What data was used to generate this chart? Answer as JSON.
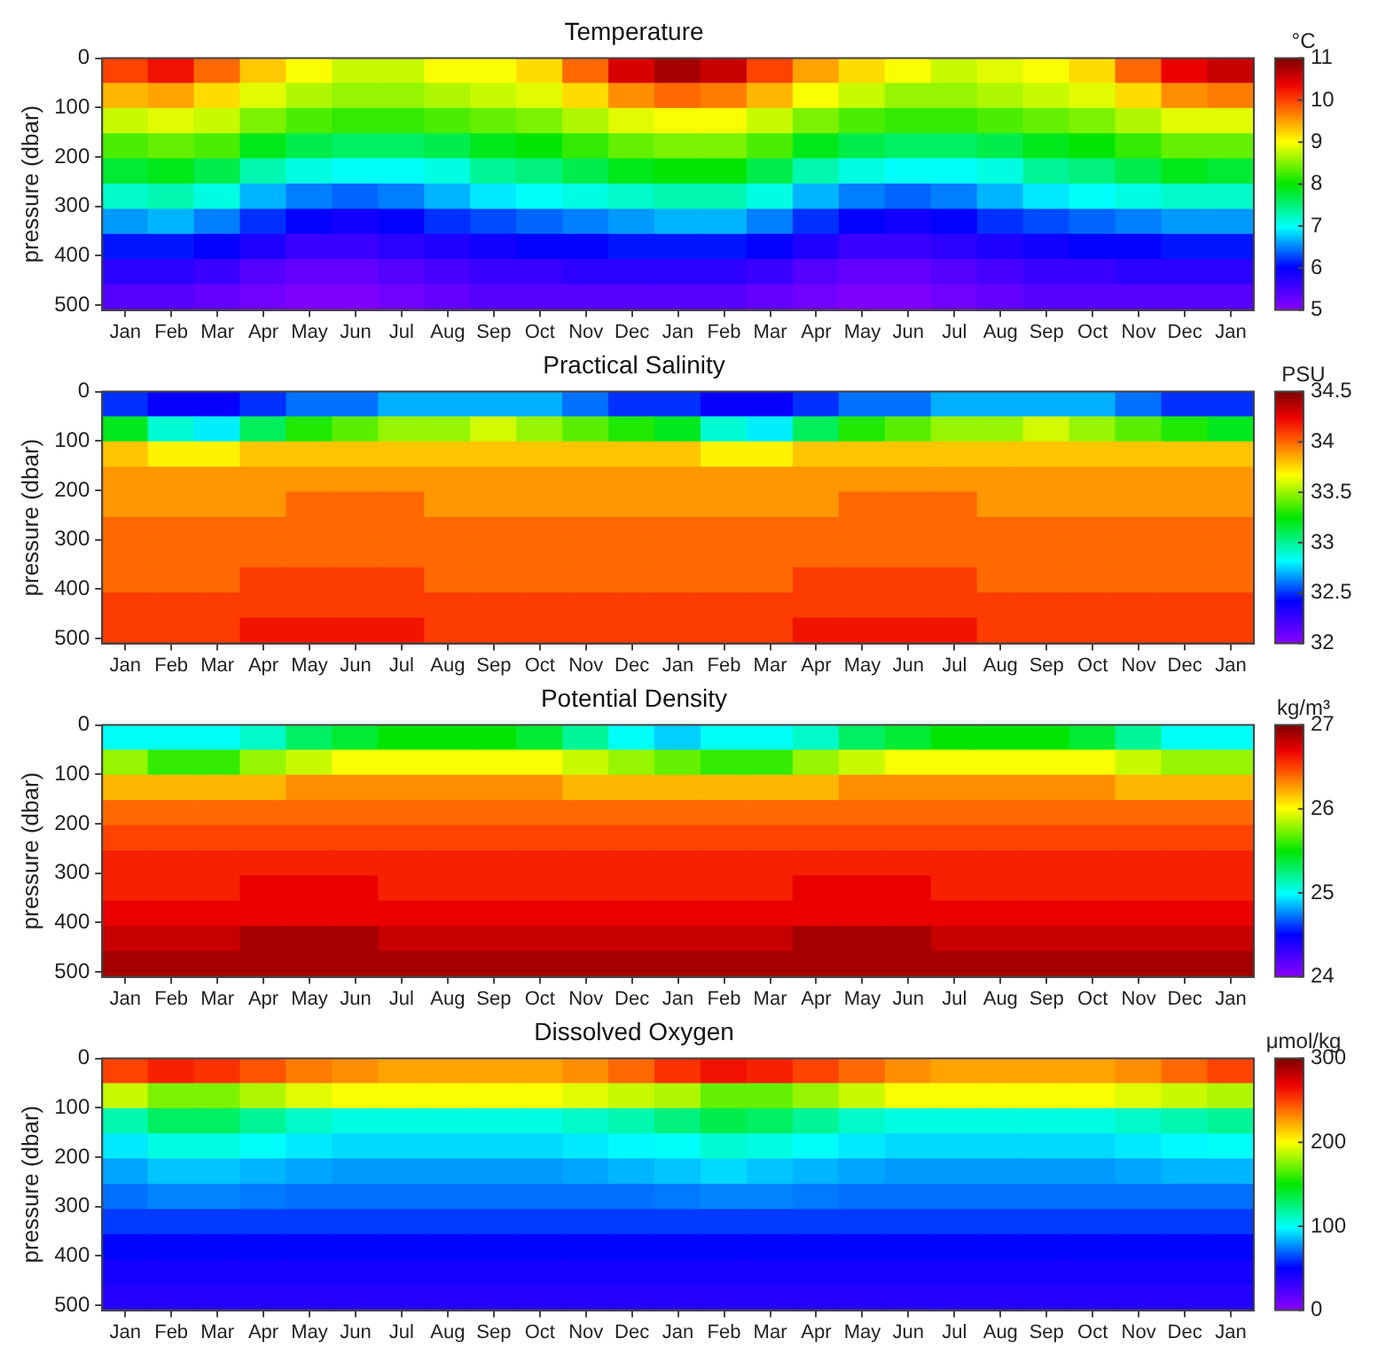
{
  "chart_data": [
    {
      "type": "heatmap",
      "title": "Temperature",
      "ylabel": "pressure (dbar)",
      "clabel": "°C",
      "categories": [
        "Jan",
        "Feb",
        "Mar",
        "Apr",
        "May",
        "Jun",
        "Jul",
        "Aug",
        "Sep",
        "Oct",
        "Nov",
        "Dec",
        "Jan",
        "Feb",
        "Mar",
        "Apr",
        "May",
        "Jun",
        "Jul",
        "Aug",
        "Sep",
        "Oct",
        "Nov",
        "Dec",
        "Jan"
      ],
      "ylim": [
        510,
        0
      ],
      "yticks": [
        0,
        100,
        200,
        300,
        400,
        500
      ],
      "clim": [
        5,
        11
      ],
      "cticks": [
        5,
        6,
        7,
        8,
        9,
        10,
        11
      ],
      "cells": [
        [
          10,
          10.3,
          9.8,
          9.3,
          9,
          8.8,
          8.8,
          9,
          9,
          9.2,
          9.8,
          10.5,
          10.8,
          10.6,
          10,
          9.5,
          9.2,
          9,
          8.8,
          8.9,
          9,
          9.2,
          9.8,
          10.4,
          10.6
        ],
        [
          9.4,
          9.5,
          9.2,
          8.9,
          8.7,
          8.6,
          8.6,
          8.7,
          8.8,
          8.9,
          9.2,
          9.6,
          9.8,
          9.7,
          9.4,
          9,
          8.8,
          8.6,
          8.6,
          8.7,
          8.8,
          8.9,
          9.2,
          9.6,
          9.7
        ],
        [
          8.8,
          8.9,
          8.8,
          8.5,
          8.3,
          8.2,
          8.2,
          8.3,
          8.4,
          8.5,
          8.7,
          8.9,
          9,
          9,
          8.8,
          8.5,
          8.3,
          8.2,
          8.2,
          8.3,
          8.4,
          8.5,
          8.7,
          8.9,
          8.9
        ],
        [
          8.3,
          8.4,
          8.3,
          7.9,
          7.7,
          7.6,
          7.6,
          7.7,
          7.9,
          8,
          8.2,
          8.4,
          8.5,
          8.5,
          8.3,
          7.9,
          7.7,
          7.6,
          7.6,
          7.7,
          7.9,
          8,
          8.2,
          8.4,
          8.4
        ],
        [
          7.8,
          7.9,
          7.7,
          7.3,
          7.1,
          7,
          7,
          7.1,
          7.4,
          7.5,
          7.7,
          7.9,
          8,
          8,
          7.7,
          7.3,
          7.1,
          7,
          7,
          7.1,
          7.4,
          7.5,
          7.7,
          7.9,
          7.8
        ],
        [
          7.2,
          7.3,
          7.1,
          6.7,
          6.5,
          6.4,
          6.5,
          6.7,
          6.9,
          7,
          7.1,
          7.2,
          7.3,
          7.3,
          7.1,
          6.7,
          6.5,
          6.4,
          6.5,
          6.7,
          6.9,
          7,
          7.1,
          7.2,
          7.2
        ],
        [
          6.6,
          6.7,
          6.5,
          6.2,
          6,
          5.9,
          6,
          6.2,
          6.3,
          6.4,
          6.5,
          6.6,
          6.7,
          6.7,
          6.5,
          6.2,
          6,
          5.9,
          6,
          6.2,
          6.3,
          6.4,
          6.5,
          6.6,
          6.6
        ],
        [
          6.1,
          6.1,
          6,
          5.8,
          5.6,
          5.6,
          5.7,
          5.8,
          5.9,
          6,
          6,
          6.1,
          6.1,
          6.1,
          6,
          5.8,
          5.6,
          5.6,
          5.7,
          5.8,
          5.9,
          6,
          6,
          6.1,
          6.1
        ],
        [
          5.7,
          5.7,
          5.6,
          5.4,
          5.3,
          5.3,
          5.4,
          5.5,
          5.6,
          5.6,
          5.7,
          5.7,
          5.7,
          5.7,
          5.6,
          5.4,
          5.3,
          5.3,
          5.4,
          5.5,
          5.6,
          5.6,
          5.7,
          5.7,
          5.7
        ],
        [
          5.4,
          5.4,
          5.3,
          5.2,
          5.1,
          5.1,
          5.2,
          5.3,
          5.4,
          5.4,
          5.4,
          5.4,
          5.4,
          5.4,
          5.3,
          5.2,
          5.1,
          5.1,
          5.2,
          5.3,
          5.4,
          5.4,
          5.4,
          5.4,
          5.4
        ]
      ]
    },
    {
      "type": "heatmap",
      "title": "Practical Salinity",
      "ylabel": "pressure (dbar)",
      "clabel": "PSU",
      "categories": [
        "Jan",
        "Feb",
        "Mar",
        "Apr",
        "May",
        "Jun",
        "Jul",
        "Aug",
        "Sep",
        "Oct",
        "Nov",
        "Dec",
        "Jan",
        "Feb",
        "Mar",
        "Apr",
        "May",
        "Jun",
        "Jul",
        "Aug",
        "Sep",
        "Oct",
        "Nov",
        "Dec",
        "Jan"
      ],
      "ylim": [
        510,
        0
      ],
      "yticks": [
        0,
        100,
        200,
        300,
        400,
        500
      ],
      "clim": [
        32,
        34.5
      ],
      "cticks": [
        32,
        32.5,
        33,
        33.5,
        34,
        34.5
      ],
      "cells": [
        [
          32.5,
          32.4,
          32.4,
          32.5,
          32.6,
          32.6,
          32.7,
          32.7,
          32.7,
          32.7,
          32.6,
          32.5,
          32.5,
          32.4,
          32.4,
          32.5,
          32.6,
          32.6,
          32.7,
          32.7,
          32.7,
          32.7,
          32.6,
          32.5,
          32.5
        ],
        [
          33.2,
          32.9,
          32.8,
          33.1,
          33.3,
          33.4,
          33.5,
          33.5,
          33.6,
          33.5,
          33.4,
          33.3,
          33.2,
          32.9,
          32.8,
          33.1,
          33.3,
          33.4,
          33.5,
          33.5,
          33.6,
          33.5,
          33.4,
          33.3,
          33.2
        ],
        [
          33.8,
          33.7,
          33.7,
          33.8,
          33.8,
          33.8,
          33.8,
          33.8,
          33.8,
          33.8,
          33.8,
          33.8,
          33.8,
          33.7,
          33.7,
          33.8,
          33.8,
          33.8,
          33.8,
          33.8,
          33.8,
          33.8,
          33.8,
          33.8,
          33.8
        ],
        [
          33.9,
          33.9,
          33.9,
          33.9,
          33.9,
          33.9,
          33.9,
          33.9,
          33.9,
          33.9,
          33.9,
          33.9,
          33.9,
          33.9,
          33.9,
          33.9,
          33.9,
          33.9,
          33.9,
          33.9,
          33.9,
          33.9,
          33.9,
          33.9,
          33.9
        ],
        [
          33.9,
          33.9,
          33.9,
          33.9,
          34,
          34,
          34,
          33.9,
          33.9,
          33.9,
          33.9,
          33.9,
          33.9,
          33.9,
          33.9,
          33.9,
          34,
          34,
          34,
          33.9,
          33.9,
          33.9,
          33.9,
          33.9,
          33.9
        ],
        [
          34,
          34,
          34,
          34,
          34,
          34,
          34,
          34,
          34,
          34,
          34,
          34,
          34,
          34,
          34,
          34,
          34,
          34,
          34,
          34,
          34,
          34,
          34,
          34,
          34
        ],
        [
          34,
          34,
          34,
          34,
          34,
          34,
          34,
          34,
          34,
          34,
          34,
          34,
          34,
          34,
          34,
          34,
          34,
          34,
          34,
          34,
          34,
          34,
          34,
          34,
          34
        ],
        [
          34,
          34,
          34,
          34.1,
          34.1,
          34.1,
          34.1,
          34,
          34,
          34,
          34,
          34,
          34,
          34,
          34,
          34.1,
          34.1,
          34.1,
          34.1,
          34,
          34,
          34,
          34,
          34,
          34
        ],
        [
          34.1,
          34.1,
          34.1,
          34.1,
          34.1,
          34.1,
          34.1,
          34.1,
          34.1,
          34.1,
          34.1,
          34.1,
          34.1,
          34.1,
          34.1,
          34.1,
          34.1,
          34.1,
          34.1,
          34.1,
          34.1,
          34.1,
          34.1,
          34.1,
          34.1
        ],
        [
          34.1,
          34.1,
          34.1,
          34.2,
          34.2,
          34.2,
          34.2,
          34.1,
          34.1,
          34.1,
          34.1,
          34.1,
          34.1,
          34.1,
          34.1,
          34.2,
          34.2,
          34.2,
          34.2,
          34.1,
          34.1,
          34.1,
          34.1,
          34.1,
          34.1
        ]
      ]
    },
    {
      "type": "heatmap",
      "title": "Potential Density",
      "ylabel": "pressure (dbar)",
      "clabel": "kg/m³",
      "categories": [
        "Jan",
        "Feb",
        "Mar",
        "Apr",
        "May",
        "Jun",
        "Jul",
        "Aug",
        "Sep",
        "Oct",
        "Nov",
        "Dec",
        "Jan",
        "Feb",
        "Mar",
        "Apr",
        "May",
        "Jun",
        "Jul",
        "Aug",
        "Sep",
        "Oct",
        "Nov",
        "Dec",
        "Jan"
      ],
      "ylim": [
        510,
        0
      ],
      "yticks": [
        0,
        100,
        200,
        300,
        400,
        500
      ],
      "clim": [
        24,
        27
      ],
      "cticks": [
        24,
        25,
        26,
        27
      ],
      "cells": [
        [
          25,
          25,
          25,
          25.1,
          25.3,
          25.4,
          25.5,
          25.5,
          25.5,
          25.4,
          25.2,
          25,
          24.9,
          25,
          25,
          25.1,
          25.3,
          25.4,
          25.5,
          25.5,
          25.5,
          25.4,
          25.2,
          25,
          25
        ],
        [
          25.8,
          25.6,
          25.6,
          25.8,
          25.9,
          26,
          26,
          26,
          26,
          26,
          25.9,
          25.8,
          25.7,
          25.6,
          25.6,
          25.8,
          25.9,
          26,
          26,
          26,
          26,
          26,
          25.9,
          25.8,
          25.8
        ],
        [
          26.2,
          26.2,
          26.2,
          26.2,
          26.3,
          26.3,
          26.3,
          26.3,
          26.3,
          26.3,
          26.2,
          26.2,
          26.2,
          26.2,
          26.2,
          26.2,
          26.3,
          26.3,
          26.3,
          26.3,
          26.3,
          26.3,
          26.2,
          26.2,
          26.2
        ],
        [
          26.4,
          26.4,
          26.4,
          26.4,
          26.4,
          26.4,
          26.4,
          26.4,
          26.4,
          26.4,
          26.4,
          26.4,
          26.4,
          26.4,
          26.4,
          26.4,
          26.4,
          26.4,
          26.4,
          26.4,
          26.4,
          26.4,
          26.4,
          26.4,
          26.4
        ],
        [
          26.5,
          26.5,
          26.5,
          26.5,
          26.5,
          26.5,
          26.5,
          26.5,
          26.5,
          26.5,
          26.5,
          26.5,
          26.5,
          26.5,
          26.5,
          26.5,
          26.5,
          26.5,
          26.5,
          26.5,
          26.5,
          26.5,
          26.5,
          26.5,
          26.5
        ],
        [
          26.6,
          26.6,
          26.6,
          26.6,
          26.6,
          26.6,
          26.6,
          26.6,
          26.6,
          26.6,
          26.6,
          26.6,
          26.6,
          26.6,
          26.6,
          26.6,
          26.6,
          26.6,
          26.6,
          26.6,
          26.6,
          26.6,
          26.6,
          26.6,
          26.6
        ],
        [
          26.6,
          26.6,
          26.6,
          26.7,
          26.7,
          26.7,
          26.6,
          26.6,
          26.6,
          26.6,
          26.6,
          26.6,
          26.6,
          26.6,
          26.6,
          26.7,
          26.7,
          26.7,
          26.6,
          26.6,
          26.6,
          26.6,
          26.6,
          26.6,
          26.6
        ],
        [
          26.7,
          26.7,
          26.7,
          26.7,
          26.7,
          26.7,
          26.7,
          26.7,
          26.7,
          26.7,
          26.7,
          26.7,
          26.7,
          26.7,
          26.7,
          26.7,
          26.7,
          26.7,
          26.7,
          26.7,
          26.7,
          26.7,
          26.7,
          26.7,
          26.7
        ],
        [
          26.8,
          26.8,
          26.8,
          26.9,
          26.9,
          26.9,
          26.8,
          26.8,
          26.8,
          26.8,
          26.8,
          26.8,
          26.8,
          26.8,
          26.8,
          26.9,
          26.9,
          26.9,
          26.8,
          26.8,
          26.8,
          26.8,
          26.8,
          26.8,
          26.8
        ],
        [
          26.9,
          26.9,
          26.9,
          26.9,
          26.9,
          26.9,
          26.9,
          26.9,
          26.9,
          26.9,
          26.9,
          26.9,
          26.9,
          26.9,
          26.9,
          26.9,
          26.9,
          26.9,
          26.9,
          26.9,
          26.9,
          26.9,
          26.9,
          26.9,
          26.9
        ]
      ]
    },
    {
      "type": "heatmap",
      "title": "Dissolved Oxygen",
      "ylabel": "pressure (dbar)",
      "clabel": "μmol/kg",
      "categories": [
        "Jan",
        "Feb",
        "Mar",
        "Apr",
        "May",
        "Jun",
        "Jul",
        "Aug",
        "Sep",
        "Oct",
        "Nov",
        "Dec",
        "Jan",
        "Feb",
        "Mar",
        "Apr",
        "May",
        "Jun",
        "Jul",
        "Aug",
        "Sep",
        "Oct",
        "Nov",
        "Dec",
        "Jan"
      ],
      "ylim": [
        510,
        0
      ],
      "yticks": [
        0,
        100,
        200,
        300,
        400,
        500
      ],
      "clim": [
        0,
        300
      ],
      "cticks": [
        0,
        100,
        200,
        300
      ],
      "cells": [
        [
          250,
          260,
          255,
          245,
          235,
          230,
          225,
          225,
          225,
          225,
          230,
          240,
          255,
          265,
          260,
          250,
          240,
          230,
          225,
          225,
          225,
          225,
          230,
          240,
          250
        ],
        [
          190,
          175,
          175,
          185,
          195,
          200,
          200,
          200,
          200,
          200,
          195,
          190,
          185,
          170,
          170,
          180,
          190,
          200,
          200,
          200,
          200,
          200,
          195,
          190,
          185
        ],
        [
          115,
          130,
          130,
          120,
          110,
          105,
          105,
          105,
          105,
          105,
          110,
          115,
          125,
          135,
          130,
          120,
          110,
          105,
          105,
          105,
          105,
          105,
          110,
          115,
          120
        ],
        [
          95,
          105,
          105,
          100,
          95,
          92,
          92,
          92,
          92,
          92,
          95,
          98,
          100,
          108,
          105,
          100,
          95,
          92,
          92,
          92,
          92,
          92,
          95,
          98,
          100
        ],
        [
          82,
          88,
          88,
          85,
          82,
          80,
          80,
          80,
          80,
          80,
          82,
          85,
          88,
          92,
          88,
          85,
          82,
          80,
          80,
          80,
          80,
          80,
          82,
          85,
          85
        ],
        [
          72,
          76,
          76,
          74,
          72,
          72,
          72,
          72,
          72,
          72,
          72,
          72,
          74,
          76,
          76,
          74,
          72,
          72,
          72,
          72,
          72,
          72,
          72,
          72,
          72
        ],
        [
          62,
          62,
          62,
          62,
          62,
          62,
          62,
          62,
          62,
          62,
          62,
          62,
          62,
          62,
          62,
          62,
          62,
          62,
          62,
          62,
          62,
          62,
          62,
          62,
          62
        ],
        [
          52,
          52,
          52,
          52,
          52,
          52,
          52,
          52,
          52,
          52,
          52,
          52,
          52,
          52,
          52,
          52,
          52,
          52,
          52,
          52,
          52,
          52,
          52,
          52,
          52
        ],
        [
          44,
          44,
          44,
          44,
          44,
          44,
          44,
          44,
          44,
          44,
          44,
          44,
          44,
          44,
          44,
          44,
          44,
          44,
          44,
          44,
          44,
          44,
          44,
          44,
          44
        ],
        [
          38,
          38,
          38,
          38,
          38,
          38,
          38,
          38,
          38,
          38,
          38,
          38,
          38,
          38,
          38,
          38,
          38,
          38,
          38,
          38,
          38,
          38,
          38,
          38,
          38
        ]
      ]
    }
  ]
}
